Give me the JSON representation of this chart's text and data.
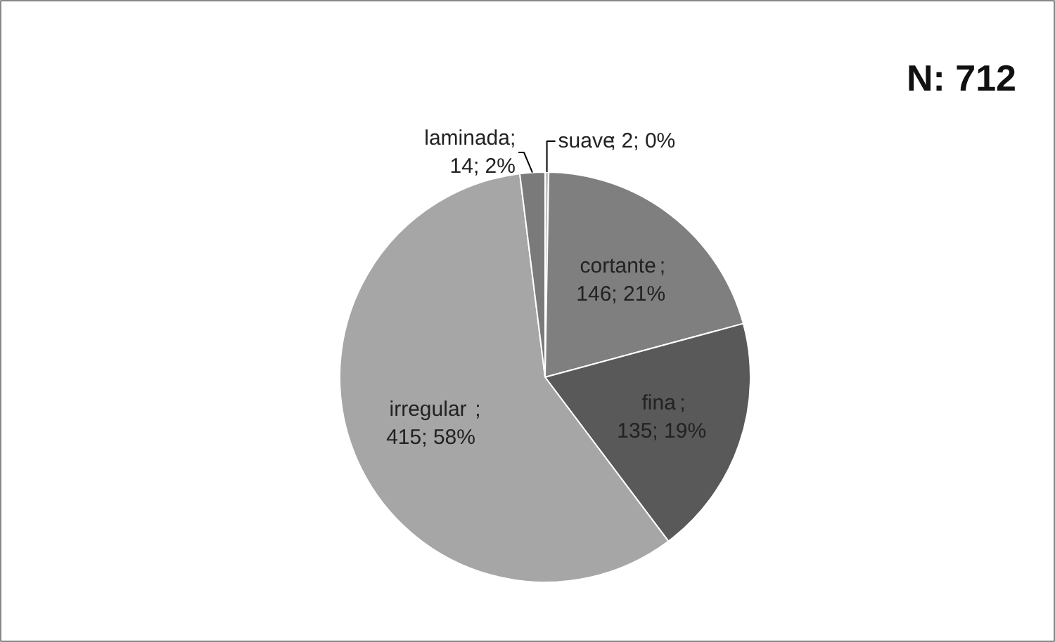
{
  "chart_data": {
    "type": "pie",
    "title": "N: 712",
    "categories": [
      "suave",
      "cortante",
      "fina",
      "irregular",
      "laminada"
    ],
    "values": [
      2,
      146,
      135,
      415,
      14
    ],
    "colors": [
      "#c0c0c0",
      "#7f7f7f",
      "#595959",
      "#a6a6a6",
      "#7a7a7a"
    ],
    "value_labels": [
      "; 2; 0%",
      "; 146; 21%",
      "; 135; 19%",
      "; 415; 58%",
      "; 14; 2%"
    ],
    "legend": false
  }
}
